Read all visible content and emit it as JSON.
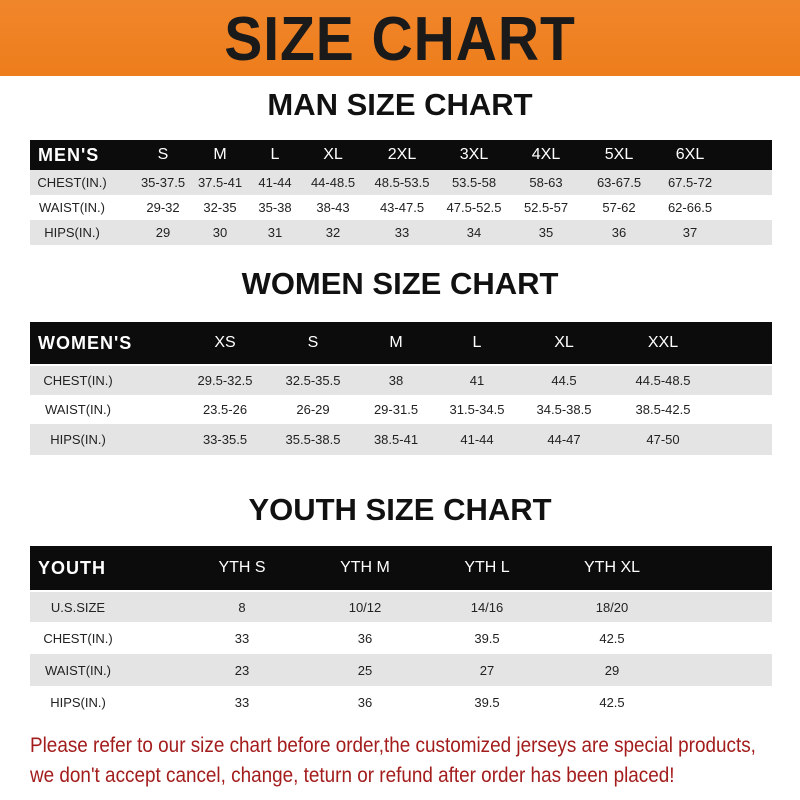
{
  "banner": {
    "title": "SIZE CHART",
    "color": "#ef8221"
  },
  "men": {
    "title": "MAN SIZE CHART",
    "header": [
      "MEN'S",
      "S",
      "M",
      "L",
      "XL",
      "2XL",
      "3XL",
      "4XL",
      "5XL",
      "6XL"
    ],
    "rows": [
      [
        "CHEST(IN.)",
        "35-37.5",
        "37.5-41",
        "41-44",
        "44-48.5",
        "48.5-53.5",
        "53.5-58",
        "58-63",
        "63-67.5",
        "67.5-72"
      ],
      [
        "WAIST(IN.)",
        "29-32",
        "32-35",
        "35-38",
        "38-43",
        "43-47.5",
        "47.5-52.5",
        "52.5-57",
        "57-62",
        "62-66.5"
      ],
      [
        "HIPS(IN.)",
        "29",
        "30",
        "31",
        "32",
        "33",
        "34",
        "35",
        "36",
        "37"
      ]
    ]
  },
  "women": {
    "title": "WOMEN SIZE CHART",
    "header": [
      "WOMEN'S",
      "XS",
      "S",
      "M",
      "L",
      "XL",
      "XXL"
    ],
    "rows": [
      [
        "CHEST(IN.)",
        "29.5-32.5",
        "32.5-35.5",
        "38",
        "41",
        "44.5",
        "44.5-48.5"
      ],
      [
        "WAIST(IN.)",
        "23.5-26",
        "26-29",
        "29-31.5",
        "31.5-34.5",
        "34.5-38.5",
        "38.5-42.5"
      ],
      [
        "HIPS(IN.)",
        "33-35.5",
        "35.5-38.5",
        "38.5-41",
        "41-44",
        "44-47",
        "47-50"
      ]
    ]
  },
  "youth": {
    "title": "YOUTH SIZE CHART",
    "header": [
      "YOUTH",
      "YTH S",
      "YTH M",
      "YTH L",
      "YTH XL"
    ],
    "rows": [
      [
        "U.S.SIZE",
        "8",
        "10/12",
        "14/16",
        "18/20"
      ],
      [
        "CHEST(IN.)",
        "33",
        "36",
        "39.5",
        "42.5"
      ],
      [
        "WAIST(IN.)",
        "23",
        "25",
        "27",
        "29"
      ],
      [
        "HIPS(IN.)",
        "33",
        "36",
        "39.5",
        "42.5"
      ]
    ]
  },
  "notice": {
    "line1": "Please refer to our size chart before order,the customized jerseys are special products,",
    "line2": "we don't accept cancel, change, teturn or refund after order has been placed!",
    "color": "#a31d1d"
  }
}
